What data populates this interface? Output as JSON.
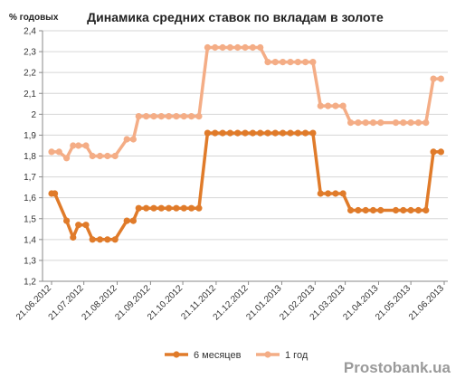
{
  "chart_data": {
    "type": "line",
    "title": "Динамика средних ставок по вкладам в золоте",
    "ylabel": "% годовых",
    "xlabel": "",
    "ylim": [
      1.2,
      2.4
    ],
    "yticks": [
      "1,2",
      "1,3",
      "1,4",
      "1,5",
      "1,6",
      "1,7",
      "1,8",
      "1,9",
      "2",
      "2,1",
      "2,2",
      "2,3",
      "2,4"
    ],
    "xticks": [
      "21.06.2012",
      "21.07.2012",
      "21.08.2012",
      "21.09.2012",
      "21.10.2012",
      "21.11.2012",
      "21.12.2012",
      "21.01.2013",
      "21.02.2013",
      "21.03.2013",
      "21.04.2013",
      "21.05.2013",
      "21.06.2013"
    ],
    "grid": "horizontal",
    "legend_position": "bottom",
    "series": [
      {
        "name": "6 месяцев",
        "color": "#e07b2a",
        "points": [
          [
            "2012-06-21",
            1.62
          ],
          [
            "2012-06-24",
            1.62
          ],
          [
            "2012-07-05",
            1.49
          ],
          [
            "2012-07-11",
            1.41
          ],
          [
            "2012-07-16",
            1.47
          ],
          [
            "2012-07-23",
            1.47
          ],
          [
            "2012-07-29",
            1.4
          ],
          [
            "2012-08-05",
            1.4
          ],
          [
            "2012-08-12",
            1.4
          ],
          [
            "2012-08-19",
            1.4
          ],
          [
            "2012-08-30",
            1.49
          ],
          [
            "2012-09-05",
            1.49
          ],
          [
            "2012-09-10",
            1.55
          ],
          [
            "2012-09-17",
            1.55
          ],
          [
            "2012-09-24",
            1.55
          ],
          [
            "2012-10-01",
            1.55
          ],
          [
            "2012-10-08",
            1.55
          ],
          [
            "2012-10-15",
            1.55
          ],
          [
            "2012-10-22",
            1.55
          ],
          [
            "2012-10-29",
            1.55
          ],
          [
            "2012-11-05",
            1.55
          ],
          [
            "2012-11-13",
            1.91
          ],
          [
            "2012-11-20",
            1.91
          ],
          [
            "2012-11-27",
            1.91
          ],
          [
            "2012-12-04",
            1.91
          ],
          [
            "2012-12-11",
            1.91
          ],
          [
            "2012-12-18",
            1.91
          ],
          [
            "2012-12-25",
            1.91
          ],
          [
            "2013-01-01",
            1.91
          ],
          [
            "2013-01-08",
            1.91
          ],
          [
            "2013-01-15",
            1.91
          ],
          [
            "2013-01-22",
            1.91
          ],
          [
            "2013-01-29",
            1.91
          ],
          [
            "2013-02-05",
            1.91
          ],
          [
            "2013-02-12",
            1.91
          ],
          [
            "2013-02-19",
            1.91
          ],
          [
            "2013-02-26",
            1.62
          ],
          [
            "2013-03-05",
            1.62
          ],
          [
            "2013-03-12",
            1.62
          ],
          [
            "2013-03-19",
            1.62
          ],
          [
            "2013-03-26",
            1.54
          ],
          [
            "2013-04-02",
            1.54
          ],
          [
            "2013-04-09",
            1.54
          ],
          [
            "2013-04-16",
            1.54
          ],
          [
            "2013-04-23",
            1.54
          ],
          [
            "2013-05-07",
            1.54
          ],
          [
            "2013-05-14",
            1.54
          ],
          [
            "2013-05-21",
            1.54
          ],
          [
            "2013-05-28",
            1.54
          ],
          [
            "2013-06-04",
            1.54
          ],
          [
            "2013-06-11",
            1.82
          ],
          [
            "2013-06-18",
            1.82
          ]
        ]
      },
      {
        "name": "1 год",
        "color": "#f4ad86",
        "points": [
          [
            "2012-06-21",
            1.82
          ],
          [
            "2012-06-28",
            1.82
          ],
          [
            "2012-07-05",
            1.79
          ],
          [
            "2012-07-11",
            1.85
          ],
          [
            "2012-07-16",
            1.85
          ],
          [
            "2012-07-23",
            1.85
          ],
          [
            "2012-07-29",
            1.8
          ],
          [
            "2012-08-05",
            1.8
          ],
          [
            "2012-08-12",
            1.8
          ],
          [
            "2012-08-19",
            1.8
          ],
          [
            "2012-08-30",
            1.88
          ],
          [
            "2012-09-05",
            1.88
          ],
          [
            "2012-09-10",
            1.99
          ],
          [
            "2012-09-17",
            1.99
          ],
          [
            "2012-09-24",
            1.99
          ],
          [
            "2012-10-01",
            1.99
          ],
          [
            "2012-10-08",
            1.99
          ],
          [
            "2012-10-15",
            1.99
          ],
          [
            "2012-10-22",
            1.99
          ],
          [
            "2012-10-29",
            1.99
          ],
          [
            "2012-11-05",
            1.99
          ],
          [
            "2012-11-13",
            2.32
          ],
          [
            "2012-11-20",
            2.32
          ],
          [
            "2012-11-27",
            2.32
          ],
          [
            "2012-12-04",
            2.32
          ],
          [
            "2012-12-11",
            2.32
          ],
          [
            "2012-12-18",
            2.32
          ],
          [
            "2012-12-25",
            2.32
          ],
          [
            "2013-01-01",
            2.32
          ],
          [
            "2013-01-08",
            2.25
          ],
          [
            "2013-01-15",
            2.25
          ],
          [
            "2013-01-22",
            2.25
          ],
          [
            "2013-01-29",
            2.25
          ],
          [
            "2013-02-05",
            2.25
          ],
          [
            "2013-02-12",
            2.25
          ],
          [
            "2013-02-19",
            2.25
          ],
          [
            "2013-02-26",
            2.04
          ],
          [
            "2013-03-05",
            2.04
          ],
          [
            "2013-03-12",
            2.04
          ],
          [
            "2013-03-19",
            2.04
          ],
          [
            "2013-03-26",
            1.96
          ],
          [
            "2013-04-02",
            1.96
          ],
          [
            "2013-04-09",
            1.96
          ],
          [
            "2013-04-16",
            1.96
          ],
          [
            "2013-04-23",
            1.96
          ],
          [
            "2013-05-07",
            1.96
          ],
          [
            "2013-05-14",
            1.96
          ],
          [
            "2013-05-21",
            1.96
          ],
          [
            "2013-05-28",
            1.96
          ],
          [
            "2013-06-04",
            1.96
          ],
          [
            "2013-06-11",
            2.17
          ],
          [
            "2013-06-18",
            2.17
          ]
        ]
      }
    ]
  },
  "watermark": "Prostobank.ua"
}
